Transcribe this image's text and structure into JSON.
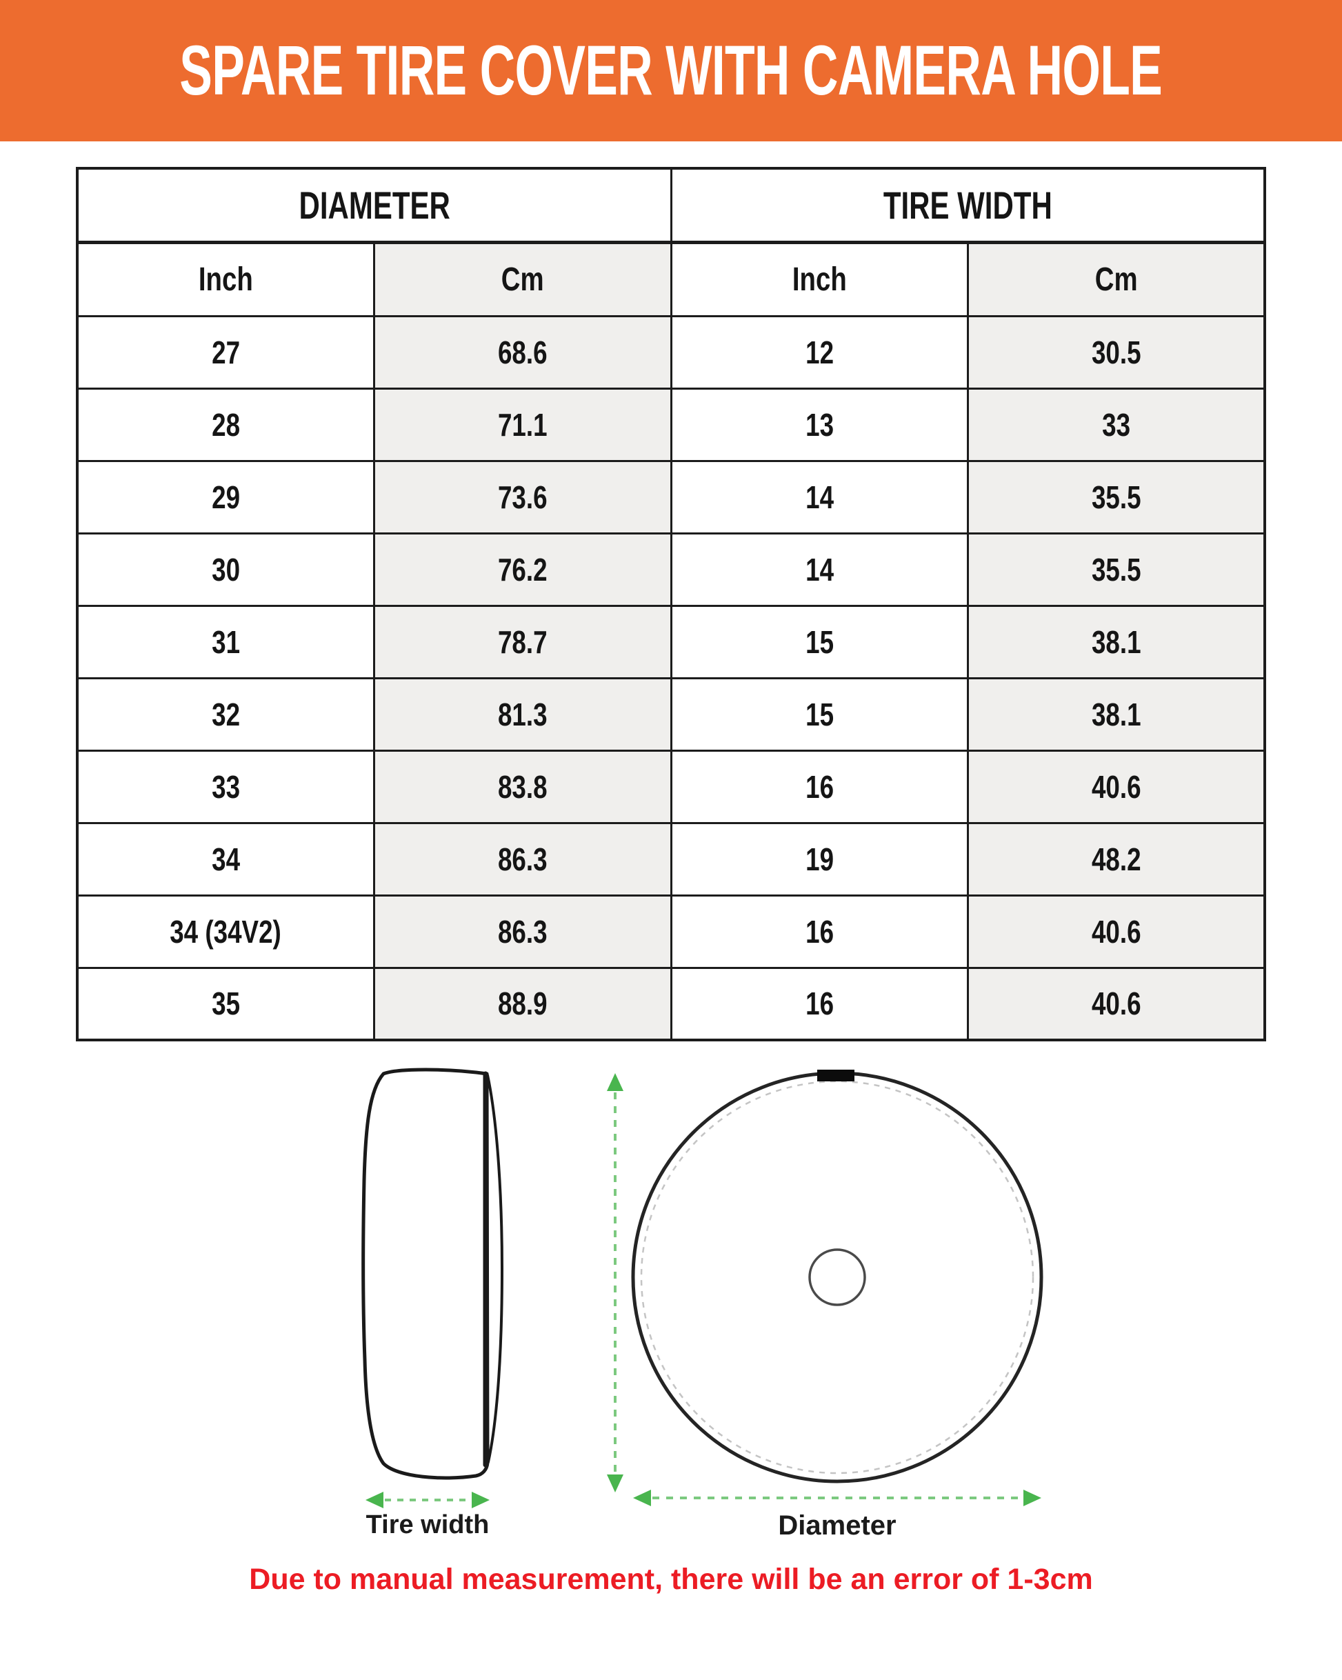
{
  "banner": {
    "title": "SPARE TIRE COVER WITH CAMERA HOLE"
  },
  "table": {
    "group_headers": [
      "DIAMETER",
      "TIRE WIDTH"
    ],
    "sub_headers": [
      "Inch",
      "Cm",
      "Inch",
      "Cm"
    ],
    "rows": [
      [
        "27",
        "68.6",
        "12",
        "30.5"
      ],
      [
        "28",
        "71.1",
        "13",
        "33"
      ],
      [
        "29",
        "73.6",
        "14",
        "35.5"
      ],
      [
        "30",
        "76.2",
        "14",
        "35.5"
      ],
      [
        "31",
        "78.7",
        "15",
        "38.1"
      ],
      [
        "32",
        "81.3",
        "15",
        "38.1"
      ],
      [
        "33",
        "83.8",
        "16",
        "40.6"
      ],
      [
        "34",
        "86.3",
        "19",
        "48.2"
      ],
      [
        "34 (34V2)",
        "86.3",
        "16",
        "40.6"
      ],
      [
        "35",
        "88.9",
        "16",
        "40.6"
      ]
    ]
  },
  "diagram": {
    "tire_width_label": "Tire width",
    "diameter_label": "Diameter"
  },
  "note": {
    "text": "Due to manual measurement, there will be an error of 1-3cm"
  },
  "theme": {
    "banner-orange": "#ED6C2F",
    "note-red": "#EC1C24",
    "arrow-green-head": "#49B54E",
    "arrow-green-dash": "#7CC97F",
    "table-border": "#1C1C1C",
    "cm-col-gray": "#F0EFED"
  }
}
